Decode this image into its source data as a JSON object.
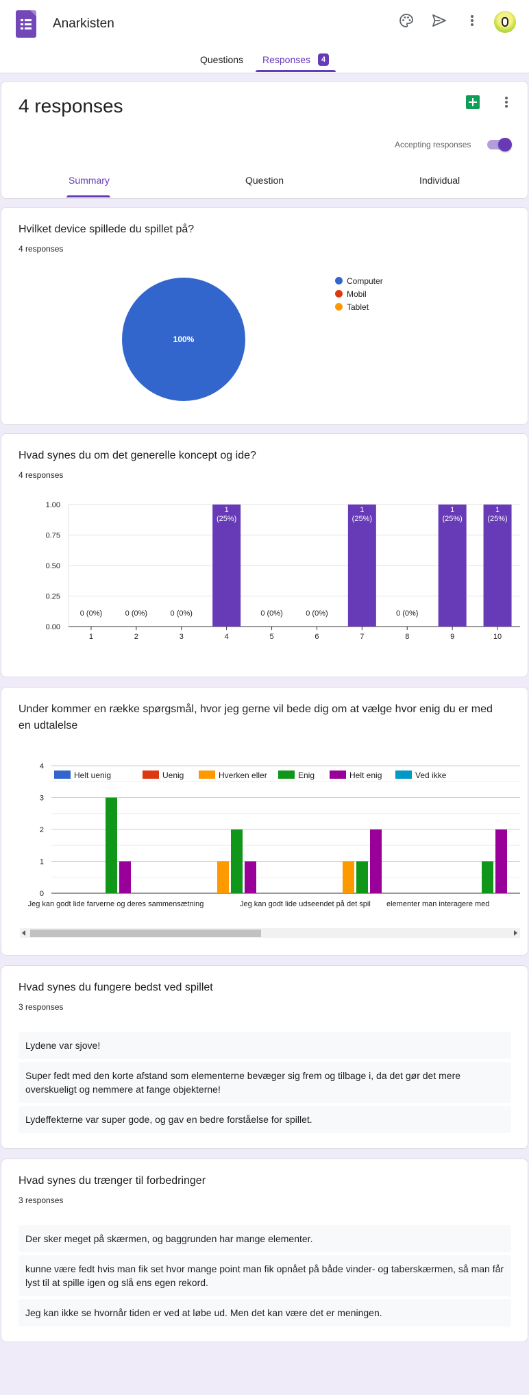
{
  "app": {
    "title": "Anarkisten"
  },
  "tabs": [
    {
      "label": "Questions"
    },
    {
      "label": "Responses",
      "badge": "4"
    }
  ],
  "summary": {
    "title": "4 responses",
    "accepting_label": "Accepting responses",
    "accepting_on": true,
    "subtabs": [
      {
        "label": "Summary"
      },
      {
        "label": "Question"
      },
      {
        "label": "Individual"
      }
    ]
  },
  "q1": {
    "title": "Hvilket device spillede du spillet på?",
    "count": "4 responses"
  },
  "q2": {
    "title": "Hvad synes du om det generelle koncept og ide?",
    "count": "4 responses"
  },
  "q3": {
    "title": "Under kommer en række spørgsmål, hvor jeg gerne vil bede dig om at vælge hvor enig du er med en udtalelse"
  },
  "q4": {
    "title": "Hvad synes du fungere bedst ved spillet",
    "count": "3 responses",
    "responses": [
      "Lydene var sjove!",
      "Super fedt med den korte afstand som elementerne bevæger sig frem og tilbage i, da det gør det mere overskueligt og nemmere at fange objekterne!",
      "Lydeffekterne var super gode, og gav en bedre forståelse for spillet."
    ]
  },
  "q5": {
    "title": "Hvad synes du trænger til forbedringer",
    "count": "3 responses",
    "responses": [
      "Der sker meget på skærmen, og baggrunden har mange elementer.",
      "kunne være fedt hvis man fik set hvor mange point man fik opnået på både vinder- og taberskærmen, så man får lyst til at spille igen og slå ens egen rekord.",
      "Jeg kan ikke se hvornår tiden er ved at løbe ud. Men det kan være det er meningen."
    ]
  },
  "colors": {
    "accent": "#673ab7",
    "bar": "#673ab7"
  },
  "chart_data": [
    {
      "type": "pie",
      "categories": [
        "Computer",
        "Mobil",
        "Tablet"
      ],
      "values": [
        4,
        0,
        0
      ],
      "slice_label": "100%",
      "colors": [
        "#3366cc",
        "#dc3912",
        "#ff9900"
      ],
      "legend": "right"
    },
    {
      "type": "bar",
      "categories": [
        "1",
        "2",
        "3",
        "4",
        "5",
        "6",
        "7",
        "8",
        "9",
        "10"
      ],
      "values": [
        0,
        0,
        0,
        1,
        0,
        0,
        1,
        0,
        1,
        1
      ],
      "data_labels": [
        "0 (0%)",
        "0 (0%)",
        "0 (0%)",
        "1\n(25%)",
        "0 (0%)",
        "0 (0%)",
        "1\n(25%)",
        "0 (0%)",
        "1\n(25%)",
        "1\n(25%)"
      ],
      "yticks": [
        "0.00",
        "0.25",
        "0.50",
        "0.75",
        "1.00"
      ],
      "ylim": [
        0,
        1
      ],
      "grid": true
    },
    {
      "type": "bar",
      "categories": [
        "Jeg kan godt lide farverne og deres sammensætning",
        "Jeg kan godt lide udseendet på det spil",
        "elementer man interagere med",
        ""
      ],
      "series": [
        {
          "name": "Helt uenig",
          "color": "#3366cc",
          "values": [
            0,
            0,
            0,
            0
          ]
        },
        {
          "name": "Uenig",
          "color": "#dc3912",
          "values": [
            0,
            0,
            0,
            0
          ]
        },
        {
          "name": "Hverken eller",
          "color": "#ff9900",
          "values": [
            0,
            1,
            1,
            0
          ]
        },
        {
          "name": "Enig",
          "color": "#109618",
          "values": [
            3,
            2,
            1,
            1
          ]
        },
        {
          "name": "Helt enig",
          "color": "#990099",
          "values": [
            1,
            1,
            2,
            2
          ]
        },
        {
          "name": "Ved ikke",
          "color": "#0099c6",
          "values": [
            0,
            0,
            0,
            0
          ]
        }
      ],
      "yticks": [
        "0",
        "1",
        "2",
        "3",
        "4"
      ],
      "ylim": [
        0,
        4
      ],
      "legend": "top",
      "grid": true
    }
  ]
}
